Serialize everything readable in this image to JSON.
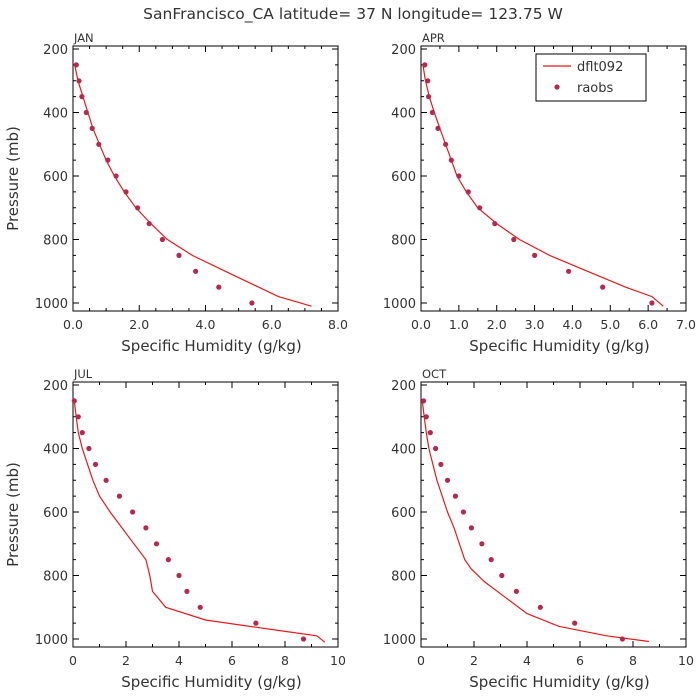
{
  "title": "SanFrancisco_CA  latitude= 37 N longitude= 123.75 W",
  "legend": {
    "model": "dflt092",
    "obs": "raobs"
  },
  "colors": {
    "model": "#e41a1c",
    "obs": "#b5294e"
  },
  "chart_data": [
    {
      "type": "line",
      "panel": "JAN",
      "xlabel": "Specific Humidity (g/kg)",
      "ylabel": "Pressure (mb)",
      "xlim": [
        0,
        8
      ],
      "ylim": [
        200,
        1000
      ],
      "y_inverted": true,
      "xticks": [
        "0.0",
        "2.0",
        "4.0",
        "6.0",
        "8.0"
      ],
      "yticks": [
        "200",
        "400",
        "600",
        "800",
        "1000"
      ],
      "series": [
        {
          "name": "dflt092",
          "style": "line",
          "points": [
            [
              0.05,
              250
            ],
            [
              0.15,
              300
            ],
            [
              0.3,
              350
            ],
            [
              0.45,
              400
            ],
            [
              0.6,
              450
            ],
            [
              0.8,
              500
            ],
            [
              1.0,
              550
            ],
            [
              1.25,
              600
            ],
            [
              1.55,
              650
            ],
            [
              1.9,
              700
            ],
            [
              2.35,
              750
            ],
            [
              2.85,
              800
            ],
            [
              3.6,
              850
            ],
            [
              4.6,
              900
            ],
            [
              5.6,
              950
            ],
            [
              6.2,
              980
            ],
            [
              7.2,
              1010
            ]
          ]
        },
        {
          "name": "raobs",
          "style": "points",
          "points": [
            [
              0.1,
              250
            ],
            [
              0.18,
              300
            ],
            [
              0.27,
              350
            ],
            [
              0.4,
              400
            ],
            [
              0.58,
              450
            ],
            [
              0.78,
              500
            ],
            [
              1.05,
              550
            ],
            [
              1.3,
              600
            ],
            [
              1.6,
              650
            ],
            [
              1.95,
              700
            ],
            [
              2.3,
              750
            ],
            [
              2.7,
              800
            ],
            [
              3.2,
              850
            ],
            [
              3.7,
              900
            ],
            [
              4.4,
              950
            ],
            [
              5.4,
              1000
            ]
          ]
        }
      ]
    },
    {
      "type": "line",
      "panel": "APR",
      "xlabel": "Specific Humidity (g/kg)",
      "ylabel": "",
      "xlim": [
        0,
        7
      ],
      "ylim": [
        200,
        1000
      ],
      "y_inverted": true,
      "xticks": [
        "0.0",
        "1.0",
        "2.0",
        "3.0",
        "4.0",
        "5.0",
        "6.0",
        "7.0"
      ],
      "yticks": [
        "200",
        "400",
        "600",
        "800",
        "1000"
      ],
      "series": [
        {
          "name": "dflt092",
          "style": "line",
          "points": [
            [
              0.05,
              250
            ],
            [
              0.12,
              300
            ],
            [
              0.22,
              350
            ],
            [
              0.35,
              400
            ],
            [
              0.5,
              450
            ],
            [
              0.65,
              500
            ],
            [
              0.8,
              550
            ],
            [
              0.95,
              600
            ],
            [
              1.2,
              650
            ],
            [
              1.5,
              700
            ],
            [
              2.0,
              750
            ],
            [
              2.6,
              800
            ],
            [
              3.4,
              850
            ],
            [
              4.4,
              900
            ],
            [
              5.4,
              950
            ],
            [
              6.1,
              980
            ],
            [
              6.4,
              1010
            ]
          ]
        },
        {
          "name": "raobs",
          "style": "points",
          "points": [
            [
              0.1,
              250
            ],
            [
              0.18,
              300
            ],
            [
              0.2,
              350
            ],
            [
              0.3,
              400
            ],
            [
              0.45,
              450
            ],
            [
              0.65,
              500
            ],
            [
              0.8,
              550
            ],
            [
              1.0,
              600
            ],
            [
              1.25,
              650
            ],
            [
              1.55,
              700
            ],
            [
              1.95,
              750
            ],
            [
              2.45,
              800
            ],
            [
              3.0,
              850
            ],
            [
              3.9,
              900
            ],
            [
              4.8,
              950
            ],
            [
              6.1,
              1000
            ]
          ]
        }
      ]
    },
    {
      "type": "line",
      "panel": "JUL",
      "xlabel": "Specific Humidity (g/kg)",
      "ylabel": "Pressure (mb)",
      "xlim": [
        0,
        10
      ],
      "ylim": [
        200,
        1000
      ],
      "y_inverted": true,
      "xticks": [
        "0",
        "2",
        "4",
        "6",
        "8",
        "10"
      ],
      "yticks": [
        "200",
        "400",
        "600",
        "800",
        "1000"
      ],
      "series": [
        {
          "name": "dflt092",
          "style": "line",
          "points": [
            [
              0.05,
              250
            ],
            [
              0.12,
              300
            ],
            [
              0.2,
              350
            ],
            [
              0.35,
              400
            ],
            [
              0.55,
              450
            ],
            [
              0.75,
              500
            ],
            [
              1.0,
              550
            ],
            [
              1.4,
              600
            ],
            [
              1.85,
              650
            ],
            [
              2.3,
              700
            ],
            [
              2.75,
              750
            ],
            [
              2.9,
              800
            ],
            [
              3.0,
              850
            ],
            [
              3.5,
              900
            ],
            [
              5.0,
              940
            ],
            [
              7.5,
              970
            ],
            [
              9.2,
              990
            ],
            [
              9.5,
              1010
            ]
          ]
        },
        {
          "name": "raobs",
          "style": "points",
          "points": [
            [
              0.05,
              250
            ],
            [
              0.2,
              300
            ],
            [
              0.35,
              350
            ],
            [
              0.6,
              400
            ],
            [
              0.85,
              450
            ],
            [
              1.25,
              500
            ],
            [
              1.75,
              550
            ],
            [
              2.25,
              600
            ],
            [
              2.75,
              650
            ],
            [
              3.15,
              700
            ],
            [
              3.6,
              750
            ],
            [
              4.0,
              800
            ],
            [
              4.3,
              850
            ],
            [
              4.8,
              900
            ],
            [
              6.9,
              950
            ],
            [
              8.7,
              1000
            ]
          ]
        }
      ]
    },
    {
      "type": "line",
      "panel": "OCT",
      "xlabel": "Specific Humidity (g/kg)",
      "ylabel": "",
      "xlim": [
        0,
        10
      ],
      "ylim": [
        200,
        1000
      ],
      "y_inverted": true,
      "xticks": [
        "0",
        "2",
        "4",
        "6",
        "8",
        "10"
      ],
      "yticks": [
        "200",
        "400",
        "600",
        "800",
        "1000"
      ],
      "series": [
        {
          "name": "dflt092",
          "style": "line",
          "points": [
            [
              0.05,
              250
            ],
            [
              0.12,
              300
            ],
            [
              0.2,
              350
            ],
            [
              0.3,
              400
            ],
            [
              0.45,
              450
            ],
            [
              0.6,
              500
            ],
            [
              0.8,
              550
            ],
            [
              1.0,
              600
            ],
            [
              1.25,
              650
            ],
            [
              1.45,
              700
            ],
            [
              1.65,
              750
            ],
            [
              1.9,
              780
            ],
            [
              2.4,
              820
            ],
            [
              3.2,
              870
            ],
            [
              4.0,
              920
            ],
            [
              5.2,
              960
            ],
            [
              7.0,
              990
            ],
            [
              8.6,
              1008
            ]
          ]
        },
        {
          "name": "raobs",
          "style": "points",
          "points": [
            [
              0.1,
              250
            ],
            [
              0.2,
              300
            ],
            [
              0.35,
              350
            ],
            [
              0.55,
              400
            ],
            [
              0.75,
              450
            ],
            [
              1.0,
              500
            ],
            [
              1.3,
              550
            ],
            [
              1.6,
              600
            ],
            [
              1.9,
              650
            ],
            [
              2.3,
              700
            ],
            [
              2.65,
              750
            ],
            [
              3.05,
              800
            ],
            [
              3.6,
              850
            ],
            [
              4.5,
              900
            ],
            [
              5.8,
              950
            ],
            [
              7.6,
              1000
            ]
          ]
        }
      ]
    }
  ]
}
